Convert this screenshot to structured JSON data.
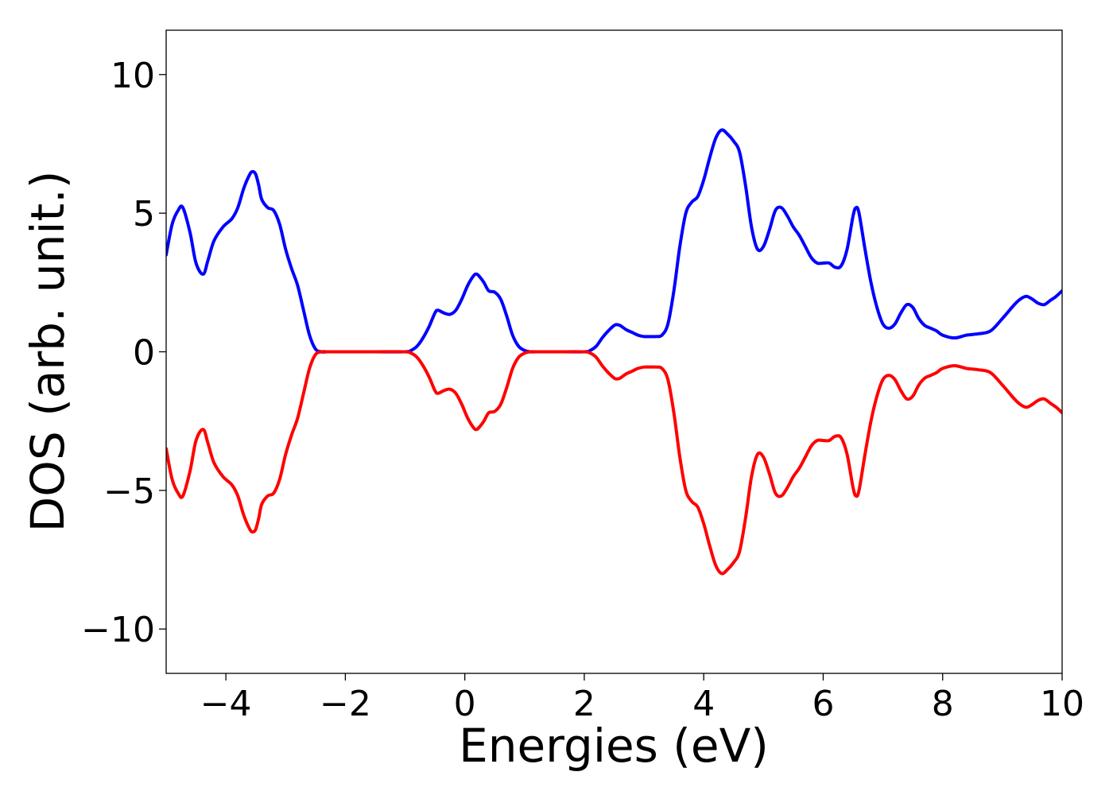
{
  "chart_data": {
    "type": "line",
    "title": "",
    "xlabel": "Energies (eV)",
    "ylabel": "DOS (arb. unit.)",
    "xlim": [
      -5,
      10
    ],
    "ylim": [
      -11.6,
      11.6
    ],
    "x_ticks": [
      -4,
      -2,
      0,
      2,
      4,
      6,
      8,
      10
    ],
    "x_tick_labels": [
      "−4",
      "−2",
      "0",
      "2",
      "4",
      "6",
      "8",
      "10"
    ],
    "y_ticks": [
      -10,
      -5,
      0,
      5,
      10
    ],
    "y_tick_labels": [
      "−10",
      "−5",
      "0",
      "5",
      "10"
    ],
    "grid": false,
    "legend": "none",
    "series": [
      {
        "color": "#0000ff",
        "x": [
          -5.0,
          -4.9,
          -4.8,
          -4.72,
          -4.6,
          -4.5,
          -4.38,
          -4.3,
          -4.2,
          -4.05,
          -3.9,
          -3.8,
          -3.7,
          -3.6,
          -3.55,
          -3.5,
          -3.45,
          -3.4,
          -3.3,
          -3.2,
          -3.1,
          -3.0,
          -2.9,
          -2.8,
          -2.7,
          -2.6,
          -2.5,
          -2.4,
          -2.3,
          -2.2,
          -2.0,
          -1.5,
          -1.0,
          -0.9,
          -0.8,
          -0.7,
          -0.6,
          -0.5,
          -0.45,
          -0.35,
          -0.25,
          -0.15,
          -0.05,
          0.05,
          0.15,
          0.2,
          0.25,
          0.32,
          0.4,
          0.5,
          0.6,
          0.7,
          0.8,
          0.9,
          1.0,
          1.1,
          1.2,
          1.5,
          2.0,
          2.1,
          2.2,
          2.3,
          2.4,
          2.5,
          2.55,
          2.6,
          2.7,
          2.8,
          2.9,
          3.0,
          3.1,
          3.2,
          3.3,
          3.4,
          3.5,
          3.6,
          3.7,
          3.8,
          3.9,
          4.0,
          4.1,
          4.2,
          4.3,
          4.4,
          4.5,
          4.6,
          4.7,
          4.8,
          4.9,
          5.0,
          5.1,
          5.2,
          5.3,
          5.4,
          5.5,
          5.6,
          5.7,
          5.8,
          5.9,
          6.0,
          6.1,
          6.2,
          6.3,
          6.4,
          6.5,
          6.55,
          6.6,
          6.7,
          6.8,
          6.9,
          7.0,
          7.1,
          7.2,
          7.3,
          7.4,
          7.5,
          7.6,
          7.7,
          7.8,
          7.9,
          8.0,
          8.2,
          8.4,
          8.6,
          8.8,
          9.0,
          9.2,
          9.3,
          9.4,
          9.5,
          9.6,
          9.7,
          9.8,
          9.9,
          10.0
        ],
        "y": [
          3.5,
          4.6,
          5.1,
          5.2,
          4.3,
          3.2,
          2.8,
          3.3,
          4.0,
          4.5,
          4.8,
          5.2,
          5.9,
          6.4,
          6.5,
          6.4,
          6.0,
          5.5,
          5.2,
          5.1,
          4.6,
          3.7,
          3.0,
          2.4,
          1.5,
          0.6,
          0.1,
          0.0,
          0.0,
          0.0,
          0.0,
          0.0,
          0.0,
          0.05,
          0.2,
          0.5,
          0.9,
          1.4,
          1.5,
          1.4,
          1.35,
          1.5,
          1.9,
          2.4,
          2.75,
          2.8,
          2.7,
          2.5,
          2.2,
          2.15,
          1.9,
          1.3,
          0.6,
          0.2,
          0.05,
          0.0,
          0.0,
          0.0,
          0.0,
          0.05,
          0.2,
          0.5,
          0.75,
          0.95,
          0.98,
          0.95,
          0.8,
          0.7,
          0.6,
          0.55,
          0.55,
          0.55,
          0.6,
          1.0,
          2.2,
          3.8,
          5.0,
          5.4,
          5.6,
          6.2,
          7.0,
          7.7,
          8.0,
          7.85,
          7.6,
          7.2,
          6.0,
          4.5,
          3.7,
          3.8,
          4.4,
          5.1,
          5.2,
          4.9,
          4.5,
          4.2,
          3.8,
          3.4,
          3.2,
          3.2,
          3.2,
          3.05,
          3.1,
          3.7,
          4.9,
          5.2,
          5.0,
          3.7,
          2.5,
          1.6,
          1.0,
          0.85,
          1.0,
          1.4,
          1.7,
          1.6,
          1.2,
          0.95,
          0.85,
          0.75,
          0.6,
          0.5,
          0.6,
          0.65,
          0.75,
          1.2,
          1.7,
          1.9,
          2.0,
          1.9,
          1.75,
          1.7,
          1.85,
          2.0,
          2.2
        ]
      },
      {
        "color": "#ff0000",
        "x": [
          -5.0,
          -4.9,
          -4.8,
          -4.72,
          -4.6,
          -4.5,
          -4.38,
          -4.3,
          -4.2,
          -4.05,
          -3.9,
          -3.8,
          -3.7,
          -3.6,
          -3.55,
          -3.5,
          -3.45,
          -3.4,
          -3.3,
          -3.2,
          -3.1,
          -3.0,
          -2.9,
          -2.8,
          -2.7,
          -2.6,
          -2.5,
          -2.4,
          -2.3,
          -2.2,
          -2.0,
          -1.5,
          -1.0,
          -0.9,
          -0.8,
          -0.7,
          -0.6,
          -0.5,
          -0.45,
          -0.35,
          -0.25,
          -0.15,
          -0.05,
          0.05,
          0.15,
          0.2,
          0.25,
          0.32,
          0.4,
          0.5,
          0.6,
          0.7,
          0.8,
          0.9,
          1.0,
          1.1,
          1.2,
          1.5,
          2.0,
          2.1,
          2.2,
          2.3,
          2.4,
          2.5,
          2.55,
          2.6,
          2.7,
          2.8,
          2.9,
          3.0,
          3.1,
          3.2,
          3.3,
          3.4,
          3.5,
          3.6,
          3.7,
          3.8,
          3.9,
          4.0,
          4.1,
          4.2,
          4.3,
          4.4,
          4.5,
          4.6,
          4.7,
          4.8,
          4.9,
          5.0,
          5.1,
          5.2,
          5.3,
          5.4,
          5.5,
          5.6,
          5.7,
          5.8,
          5.9,
          6.0,
          6.1,
          6.2,
          6.3,
          6.4,
          6.5,
          6.55,
          6.6,
          6.7,
          6.8,
          6.9,
          7.0,
          7.1,
          7.2,
          7.3,
          7.4,
          7.5,
          7.6,
          7.7,
          7.8,
          7.9,
          8.0,
          8.2,
          8.4,
          8.6,
          8.8,
          9.0,
          9.2,
          9.3,
          9.4,
          9.5,
          9.6,
          9.7,
          9.8,
          9.9,
          10.0
        ],
        "y": [
          -3.5,
          -4.6,
          -5.1,
          -5.2,
          -4.3,
          -3.2,
          -2.8,
          -3.3,
          -4.0,
          -4.5,
          -4.8,
          -5.2,
          -5.9,
          -6.4,
          -6.5,
          -6.4,
          -6.0,
          -5.5,
          -5.2,
          -5.1,
          -4.6,
          -3.7,
          -3.0,
          -2.4,
          -1.5,
          -0.6,
          -0.1,
          0.0,
          0.0,
          0.0,
          0.0,
          0.0,
          0.0,
          -0.05,
          -0.2,
          -0.5,
          -0.9,
          -1.4,
          -1.5,
          -1.4,
          -1.35,
          -1.5,
          -1.9,
          -2.4,
          -2.75,
          -2.8,
          -2.7,
          -2.5,
          -2.2,
          -2.15,
          -1.9,
          -1.3,
          -0.6,
          -0.2,
          -0.05,
          0.0,
          0.0,
          0.0,
          0.0,
          -0.05,
          -0.2,
          -0.5,
          -0.75,
          -0.95,
          -0.98,
          -0.95,
          -0.8,
          -0.7,
          -0.6,
          -0.55,
          -0.55,
          -0.55,
          -0.6,
          -1.0,
          -2.2,
          -3.8,
          -5.0,
          -5.4,
          -5.6,
          -6.2,
          -7.0,
          -7.7,
          -8.0,
          -7.85,
          -7.6,
          -7.2,
          -6.0,
          -4.5,
          -3.7,
          -3.8,
          -4.4,
          -5.1,
          -5.2,
          -4.9,
          -4.5,
          -4.2,
          -3.8,
          -3.4,
          -3.2,
          -3.2,
          -3.2,
          -3.05,
          -3.1,
          -3.7,
          -4.9,
          -5.2,
          -5.0,
          -3.7,
          -2.5,
          -1.6,
          -1.0,
          -0.85,
          -1.0,
          -1.4,
          -1.7,
          -1.6,
          -1.2,
          -0.95,
          -0.85,
          -0.75,
          -0.6,
          -0.5,
          -0.6,
          -0.65,
          -0.75,
          -1.2,
          -1.7,
          -1.9,
          -2.0,
          -1.9,
          -1.75,
          -1.7,
          -1.85,
          -2.0,
          -2.2
        ]
      }
    ]
  }
}
